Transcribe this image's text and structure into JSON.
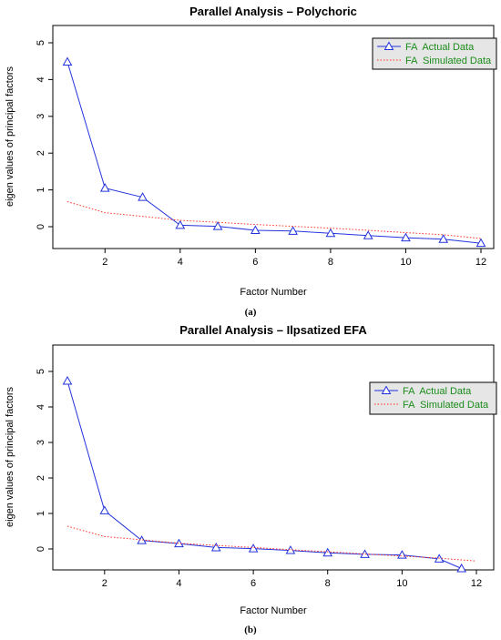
{
  "chart_data": [
    {
      "type": "line",
      "title": "Parallel Analysis – Polychoric",
      "xlabel": "Factor Number",
      "ylabel": "eigen values of principal factors",
      "panel_label": "(a)",
      "xlim": [
        1,
        12
      ],
      "ylim": [
        -0.5,
        5
      ],
      "xticks": [
        2,
        4,
        6,
        8,
        10,
        12
      ],
      "yticks": [
        0,
        1,
        2,
        3,
        4,
        5
      ],
      "legend_position": "top-right",
      "x": [
        1,
        2,
        3,
        4,
        5,
        6,
        7,
        8,
        9,
        10,
        11,
        12
      ],
      "series": [
        {
          "name": "FA  Actual Data",
          "style": "solid-triangles",
          "color": "#2233dd",
          "x": [
            1,
            2,
            3,
            4,
            5,
            6,
            7,
            8,
            9,
            10,
            11,
            12
          ],
          "values": [
            4.48,
            1.05,
            0.8,
            0.04,
            0.01,
            -0.1,
            -0.12,
            -0.18,
            -0.24,
            -0.3,
            -0.34,
            -0.45
          ]
        },
        {
          "name": "FA  Simulated Data",
          "style": "dotted",
          "color": "#ff3322",
          "x": [
            1,
            2,
            3,
            4,
            5,
            6,
            7,
            8,
            9,
            10,
            11,
            12
          ],
          "values": [
            0.68,
            0.38,
            0.28,
            0.17,
            0.12,
            0.06,
            0.01,
            -0.04,
            -0.1,
            -0.16,
            -0.22,
            -0.32
          ]
        }
      ]
    },
    {
      "type": "line",
      "title": "Parallel Analysis – Ilpsatized EFA",
      "xlabel": "Factor Number",
      "ylabel": "eigen values of principal factors",
      "panel_label": "(b)",
      "xlim": [
        1,
        12
      ],
      "ylim": [
        -0.5,
        5
      ],
      "xticks": [
        2,
        4,
        6,
        8,
        10,
        12
      ],
      "yticks": [
        0,
        1,
        2,
        3,
        4,
        5
      ],
      "legend_position": "top-right",
      "x": [
        1,
        2,
        3,
        4,
        5,
        6,
        7,
        8,
        9,
        10,
        11,
        12
      ],
      "series": [
        {
          "name": "FA  Actual Data",
          "style": "solid-triangles",
          "color": "#2233dd",
          "x": [
            1,
            2,
            3,
            4,
            5,
            6,
            7,
            8,
            9,
            10,
            11,
            11.6
          ],
          "values": [
            4.73,
            1.08,
            0.24,
            0.15,
            0.04,
            0.01,
            -0.04,
            -0.11,
            -0.15,
            -0.17,
            -0.28,
            -0.55
          ]
        },
        {
          "name": "FA  Simulated Data",
          "style": "dotted",
          "color": "#ff3322",
          "x": [
            1,
            2,
            3,
            4,
            5,
            6,
            7,
            8,
            9,
            10,
            11,
            12
          ],
          "values": [
            0.64,
            0.35,
            0.26,
            0.16,
            0.1,
            0.04,
            -0.02,
            -0.08,
            -0.14,
            -0.2,
            -0.26,
            -0.34
          ]
        }
      ]
    }
  ]
}
